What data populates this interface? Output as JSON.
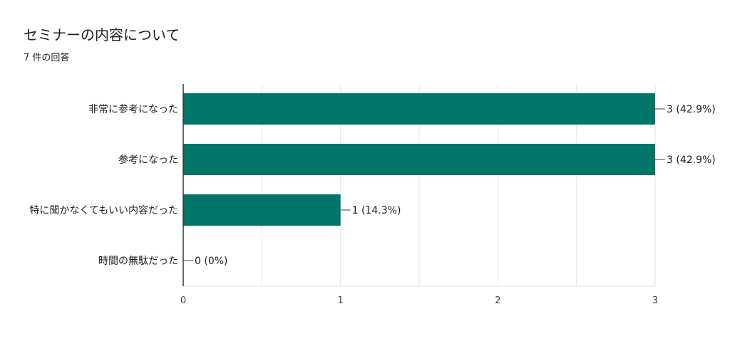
{
  "header": {
    "title": "セミナーの内容について",
    "subtitle": "7 件の回答"
  },
  "colors": {
    "bar": "#00756a",
    "grid": "#e6e6e6",
    "axis": "#333333",
    "leader": "#444444"
  },
  "chart_data": {
    "type": "bar",
    "orientation": "horizontal",
    "categories": [
      "非常に参考になった",
      "参考になった",
      "特に聞かなくてもいい内容だった",
      "時間の無駄だった"
    ],
    "values": [
      3,
      3,
      1,
      0
    ],
    "data_labels": [
      "3 (42.9%)",
      "3 (42.9%)",
      "1 (14.3%)",
      "0 (0%)"
    ],
    "xlim": [
      0,
      3
    ],
    "x_ticks": [
      "0",
      "1",
      "2",
      "3"
    ],
    "grid": true,
    "legend": "none"
  }
}
